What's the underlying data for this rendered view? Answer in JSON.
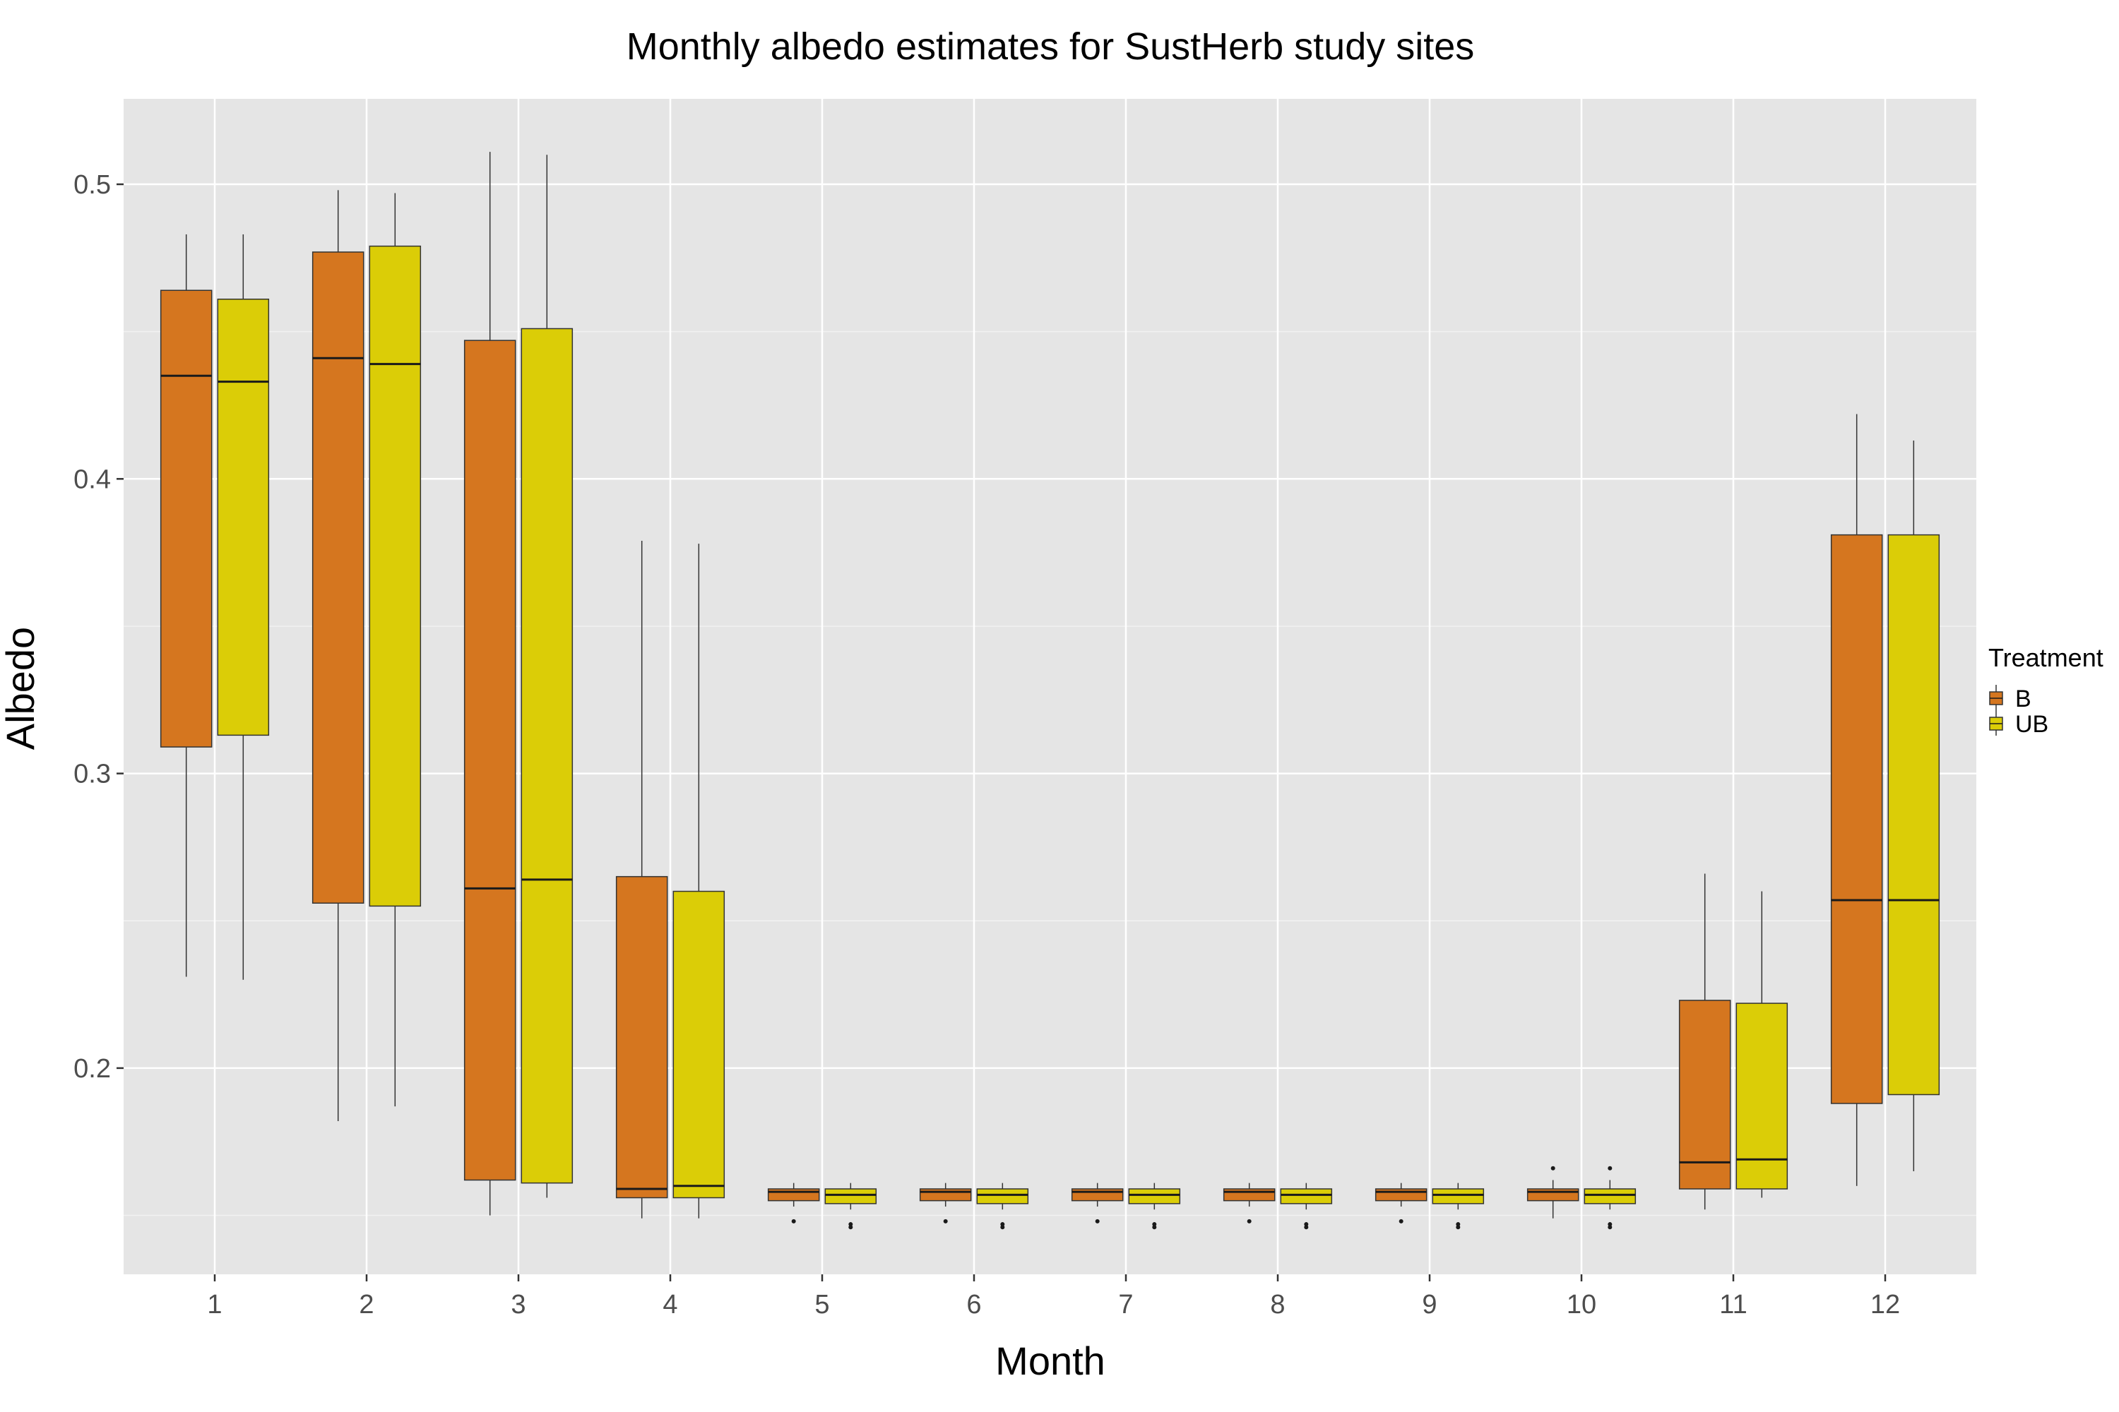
{
  "chart_data": {
    "type": "boxplot",
    "title": "Monthly albedo estimates for SustHerb study sites",
    "xlabel": "Month",
    "ylabel": "Albedo",
    "categories": [
      "1",
      "2",
      "3",
      "4",
      "5",
      "6",
      "7",
      "8",
      "9",
      "10",
      "11",
      "12"
    ],
    "y_ticks": [
      "0.2",
      "0.3",
      "0.4",
      "0.5"
    ],
    "y_tick_values": [
      0.2,
      0.3,
      0.4,
      0.5
    ],
    "ylim": [
      0.13,
      0.529
    ],
    "grid": true,
    "background": "#e5e5e5",
    "legend": {
      "title": "Treatment",
      "position": "right",
      "entries": [
        {
          "label": "B",
          "color": "#d5761f"
        },
        {
          "label": "UB",
          "color": "#dbcd07"
        }
      ]
    },
    "series": [
      {
        "name": "B",
        "color": "#d5761f",
        "boxes": [
          {
            "month": "1",
            "min": 0.231,
            "q1": 0.309,
            "median": 0.435,
            "q3": 0.464,
            "max": 0.483,
            "outliers": []
          },
          {
            "month": "2",
            "min": 0.182,
            "q1": 0.256,
            "median": 0.441,
            "q3": 0.477,
            "max": 0.498,
            "outliers": []
          },
          {
            "month": "3",
            "min": 0.15,
            "q1": 0.162,
            "median": 0.261,
            "q3": 0.447,
            "max": 0.511,
            "outliers": []
          },
          {
            "month": "4",
            "min": 0.149,
            "q1": 0.156,
            "median": 0.159,
            "q3": 0.265,
            "max": 0.379,
            "outliers": []
          },
          {
            "month": "5",
            "min": 0.153,
            "q1": 0.155,
            "median": 0.158,
            "q3": 0.159,
            "max": 0.161,
            "outliers": [
              0.148
            ]
          },
          {
            "month": "6",
            "min": 0.153,
            "q1": 0.155,
            "median": 0.158,
            "q3": 0.159,
            "max": 0.161,
            "outliers": [
              0.148
            ]
          },
          {
            "month": "7",
            "min": 0.153,
            "q1": 0.155,
            "median": 0.158,
            "q3": 0.159,
            "max": 0.161,
            "outliers": [
              0.148
            ]
          },
          {
            "month": "8",
            "min": 0.153,
            "q1": 0.155,
            "median": 0.158,
            "q3": 0.159,
            "max": 0.161,
            "outliers": [
              0.148
            ]
          },
          {
            "month": "9",
            "min": 0.153,
            "q1": 0.155,
            "median": 0.158,
            "q3": 0.159,
            "max": 0.161,
            "outliers": [
              0.148
            ]
          },
          {
            "month": "10",
            "min": 0.149,
            "q1": 0.155,
            "median": 0.158,
            "q3": 0.159,
            "max": 0.162,
            "outliers": [
              0.166
            ]
          },
          {
            "month": "11",
            "min": 0.152,
            "q1": 0.159,
            "median": 0.168,
            "q3": 0.223,
            "max": 0.266,
            "outliers": []
          },
          {
            "month": "12",
            "min": 0.16,
            "q1": 0.188,
            "median": 0.257,
            "q3": 0.381,
            "max": 0.422,
            "outliers": []
          }
        ]
      },
      {
        "name": "UB",
        "color": "#dbcd07",
        "boxes": [
          {
            "month": "1",
            "min": 0.23,
            "q1": 0.313,
            "median": 0.433,
            "q3": 0.461,
            "max": 0.483,
            "outliers": []
          },
          {
            "month": "2",
            "min": 0.187,
            "q1": 0.255,
            "median": 0.439,
            "q3": 0.479,
            "max": 0.497,
            "outliers": []
          },
          {
            "month": "3",
            "min": 0.156,
            "q1": 0.161,
            "median": 0.264,
            "q3": 0.451,
            "max": 0.51,
            "outliers": []
          },
          {
            "month": "4",
            "min": 0.149,
            "q1": 0.156,
            "median": 0.16,
            "q3": 0.26,
            "max": 0.378,
            "outliers": []
          },
          {
            "month": "5",
            "min": 0.152,
            "q1": 0.154,
            "median": 0.157,
            "q3": 0.159,
            "max": 0.161,
            "outliers": [
              0.147,
              0.146
            ]
          },
          {
            "month": "6",
            "min": 0.152,
            "q1": 0.154,
            "median": 0.157,
            "q3": 0.159,
            "max": 0.161,
            "outliers": [
              0.147,
              0.146
            ]
          },
          {
            "month": "7",
            "min": 0.152,
            "q1": 0.154,
            "median": 0.157,
            "q3": 0.159,
            "max": 0.161,
            "outliers": [
              0.147,
              0.146
            ]
          },
          {
            "month": "8",
            "min": 0.152,
            "q1": 0.154,
            "median": 0.157,
            "q3": 0.159,
            "max": 0.161,
            "outliers": [
              0.147,
              0.146
            ]
          },
          {
            "month": "9",
            "min": 0.152,
            "q1": 0.154,
            "median": 0.157,
            "q3": 0.159,
            "max": 0.161,
            "outliers": [
              0.147,
              0.146
            ]
          },
          {
            "month": "10",
            "min": 0.152,
            "q1": 0.154,
            "median": 0.157,
            "q3": 0.159,
            "max": 0.162,
            "outliers": [
              0.166,
              0.147,
              0.146
            ]
          },
          {
            "month": "11",
            "min": 0.156,
            "q1": 0.159,
            "median": 0.169,
            "q3": 0.222,
            "max": 0.26,
            "outliers": []
          },
          {
            "month": "12",
            "min": 0.165,
            "q1": 0.191,
            "median": 0.257,
            "q3": 0.381,
            "max": 0.413,
            "outliers": []
          }
        ]
      }
    ]
  }
}
